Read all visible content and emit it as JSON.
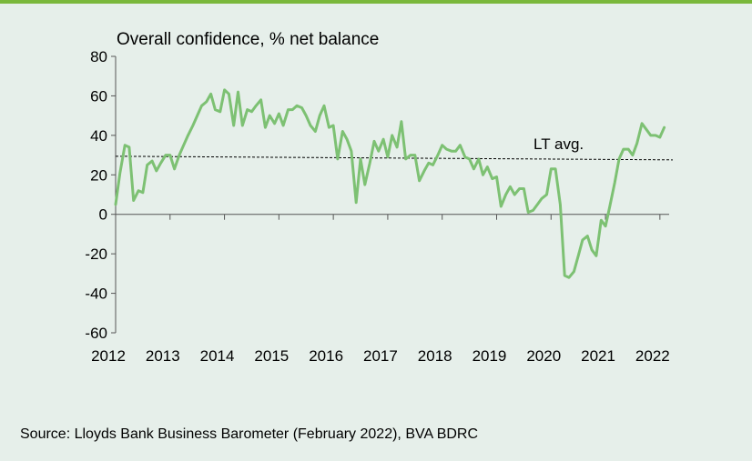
{
  "chart_data": {
    "type": "line",
    "title": "Overall confidence, % net balance",
    "xlabel": "",
    "ylabel": "",
    "ylim": [
      -60,
      80
    ],
    "yticks": [
      80,
      60,
      40,
      20,
      0,
      -20,
      -40,
      -60
    ],
    "xlim": [
      2012.0,
      2022.17
    ],
    "xticks": [
      2012,
      2013,
      2014,
      2015,
      2016,
      2017,
      2018,
      2019,
      2020,
      2021,
      2022
    ],
    "grid": false,
    "series": [
      {
        "name": "Overall confidence",
        "color": "#7dc173",
        "x": [
          2012.0,
          2012.08,
          2012.17,
          2012.25,
          2012.33,
          2012.42,
          2012.5,
          2012.58,
          2012.67,
          2012.75,
          2012.83,
          2012.92,
          2013.0,
          2013.08,
          2013.17,
          2013.25,
          2013.33,
          2013.42,
          2013.5,
          2013.58,
          2013.67,
          2013.75,
          2013.83,
          2013.92,
          2014.0,
          2014.08,
          2014.17,
          2014.25,
          2014.33,
          2014.42,
          2014.5,
          2014.58,
          2014.67,
          2014.75,
          2014.83,
          2014.92,
          2015.0,
          2015.08,
          2015.17,
          2015.25,
          2015.33,
          2015.42,
          2015.5,
          2015.58,
          2015.67,
          2015.75,
          2015.83,
          2015.92,
          2016.0,
          2016.08,
          2016.17,
          2016.25,
          2016.33,
          2016.42,
          2016.5,
          2016.58,
          2016.67,
          2016.75,
          2016.83,
          2016.92,
          2017.0,
          2017.08,
          2017.17,
          2017.25,
          2017.33,
          2017.42,
          2017.5,
          2017.58,
          2017.67,
          2017.75,
          2017.83,
          2017.92,
          2018.0,
          2018.08,
          2018.17,
          2018.25,
          2018.33,
          2018.42,
          2018.5,
          2018.58,
          2018.67,
          2018.75,
          2018.83,
          2018.92,
          2019.0,
          2019.08,
          2019.17,
          2019.25,
          2019.33,
          2019.42,
          2019.5,
          2019.58,
          2019.67,
          2019.75,
          2019.83,
          2019.92,
          2020.0,
          2020.08,
          2020.17,
          2020.25,
          2020.33,
          2020.42,
          2020.5,
          2020.58,
          2020.67,
          2020.75,
          2020.83,
          2020.92,
          2021.0,
          2021.08,
          2021.17,
          2021.25,
          2021.33,
          2021.42,
          2021.5,
          2021.58,
          2021.67,
          2021.75,
          2021.83,
          2021.92,
          2022.0,
          2022.08
        ],
        "values": [
          5,
          21,
          35,
          34,
          7,
          12,
          11,
          25,
          27,
          22,
          26,
          30,
          30,
          23,
          30,
          35,
          40,
          45,
          50,
          55,
          57,
          61,
          53,
          52,
          63,
          61,
          45,
          62,
          45,
          53,
          52,
          55,
          58,
          44,
          50,
          46,
          51,
          45,
          53,
          53,
          55,
          54,
          50,
          45,
          42,
          50,
          55,
          44,
          45,
          28,
          42,
          38,
          32,
          6,
          28,
          15,
          26,
          37,
          32,
          38,
          29,
          40,
          34,
          47,
          28,
          30,
          30,
          17,
          22,
          26,
          25,
          30,
          35,
          33,
          32,
          32,
          35,
          29,
          28,
          23,
          28,
          20,
          24,
          18,
          19,
          4,
          10,
          14,
          10,
          13,
          13,
          1,
          2,
          5,
          8,
          10,
          23,
          23,
          5,
          -31,
          -32,
          -29,
          -21,
          -13,
          -11,
          -18,
          -21,
          -3,
          -6,
          4,
          16,
          28,
          33,
          33,
          30,
          36,
          46,
          43,
          40,
          40,
          39,
          44
        ]
      }
    ],
    "reference_line": {
      "label": "LT avg.",
      "value": 28.5,
      "style": "dashed"
    }
  },
  "source": "Source: Lloyds Bank Business Barometer (February 2022), BVA BDRC",
  "colors": {
    "background": "#e6efea",
    "accent_rule": "#7ab83b",
    "line": "#7dc173",
    "axis": "#555555"
  }
}
